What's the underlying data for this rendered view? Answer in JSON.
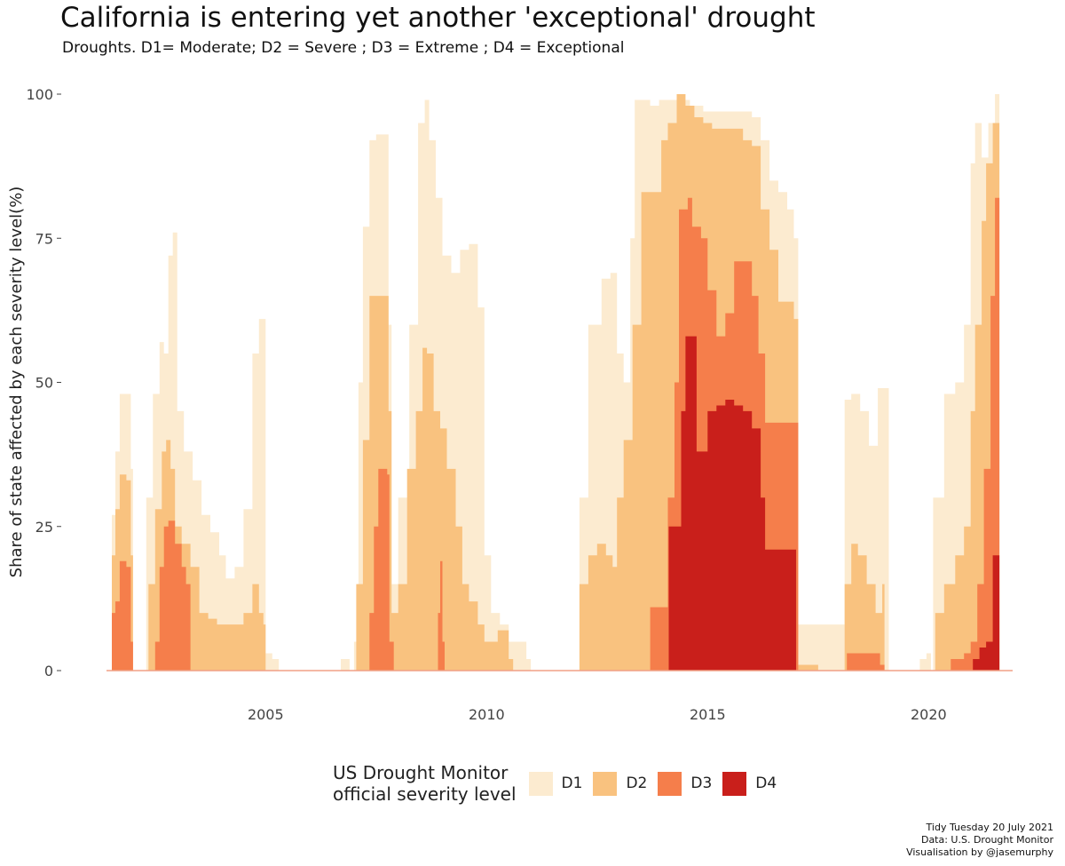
{
  "title": "California is entering yet another 'exceptional' drought",
  "subtitle": "Droughts. D1= Moderate; D2 = Severe ; D3 = Extreme ; D4 = Exceptional",
  "legend": {
    "title_line1": "US Drought Monitor",
    "title_line2": "official severity level",
    "items": [
      {
        "label": "D1",
        "color": "#fcebd0"
      },
      {
        "label": "D2",
        "color": "#f9c27f"
      },
      {
        "label": "D3",
        "color": "#f57e4b"
      },
      {
        "label": "D4",
        "color": "#c91f1b"
      }
    ]
  },
  "caption": {
    "line1": "Tidy Tuesday 20 July 2021",
    "line2": "Data: U.S. Drought Monitor",
    "line3": "Visualisation by @jasemurphy"
  },
  "chart_data": {
    "type": "area",
    "title": "California is entering yet another 'exceptional' drought",
    "subtitle": "Droughts. D1= Moderate; D2 = Severe ; D3 = Extreme ; D4 = Exceptional",
    "xlabel": "",
    "ylabel": "Share of state affected by each severity level(%)",
    "xlim": [
      2001.4,
      2021.9
    ],
    "ylim": [
      0,
      100
    ],
    "xticks": [
      2005,
      2010,
      2015,
      2020
    ],
    "yticks": [
      0,
      25,
      50,
      75,
      100
    ],
    "grid": false,
    "legend_position": "bottom",
    "series": [
      {
        "name": "D1",
        "color": "#fcebd0",
        "points": [
          [
            2001.5,
            0
          ],
          [
            2001.52,
            27
          ],
          [
            2001.6,
            38
          ],
          [
            2001.7,
            48
          ],
          [
            2001.85,
            48
          ],
          [
            2001.95,
            35
          ],
          [
            2002.0,
            0
          ],
          [
            2002.2,
            0
          ],
          [
            2002.3,
            30
          ],
          [
            2002.45,
            48
          ],
          [
            2002.6,
            57
          ],
          [
            2002.7,
            55
          ],
          [
            2002.8,
            72
          ],
          [
            2002.9,
            76
          ],
          [
            2003.0,
            45
          ],
          [
            2003.15,
            38
          ],
          [
            2003.35,
            33
          ],
          [
            2003.55,
            27
          ],
          [
            2003.75,
            24
          ],
          [
            2003.95,
            20
          ],
          [
            2004.1,
            16
          ],
          [
            2004.3,
            18
          ],
          [
            2004.5,
            28
          ],
          [
            2004.7,
            55
          ],
          [
            2004.85,
            61
          ],
          [
            2004.95,
            61
          ],
          [
            2005.0,
            3
          ],
          [
            2005.15,
            2
          ],
          [
            2005.3,
            0
          ],
          [
            2006.6,
            0
          ],
          [
            2006.7,
            2
          ],
          [
            2006.9,
            0
          ],
          [
            2007.0,
            5
          ],
          [
            2007.1,
            50
          ],
          [
            2007.2,
            77
          ],
          [
            2007.35,
            92
          ],
          [
            2007.5,
            93
          ],
          [
            2007.7,
            93
          ],
          [
            2007.78,
            60
          ],
          [
            2007.85,
            15
          ],
          [
            2008.0,
            30
          ],
          [
            2008.25,
            60
          ],
          [
            2008.45,
            95
          ],
          [
            2008.6,
            99
          ],
          [
            2008.7,
            92
          ],
          [
            2008.85,
            82
          ],
          [
            2009.0,
            72
          ],
          [
            2009.2,
            69
          ],
          [
            2009.4,
            73
          ],
          [
            2009.6,
            74
          ],
          [
            2009.8,
            63
          ],
          [
            2009.95,
            20
          ],
          [
            2010.1,
            10
          ],
          [
            2010.3,
            8
          ],
          [
            2010.5,
            5
          ],
          [
            2010.7,
            5
          ],
          [
            2010.9,
            2
          ],
          [
            2011.0,
            0
          ],
          [
            2012.0,
            0
          ],
          [
            2012.1,
            30
          ],
          [
            2012.3,
            60
          ],
          [
            2012.6,
            68
          ],
          [
            2012.8,
            69
          ],
          [
            2012.95,
            55
          ],
          [
            2013.1,
            50
          ],
          [
            2013.25,
            75
          ],
          [
            2013.35,
            99
          ],
          [
            2013.5,
            99
          ],
          [
            2013.7,
            98
          ],
          [
            2013.9,
            99
          ],
          [
            2014.1,
            99
          ],
          [
            2014.3,
            99
          ],
          [
            2014.6,
            98
          ],
          [
            2014.9,
            97
          ],
          [
            2015.2,
            97
          ],
          [
            2015.5,
            97
          ],
          [
            2015.8,
            97
          ],
          [
            2016.0,
            96
          ],
          [
            2016.2,
            92
          ],
          [
            2016.4,
            85
          ],
          [
            2016.6,
            83
          ],
          [
            2016.8,
            80
          ],
          [
            2016.95,
            75
          ],
          [
            2017.05,
            8
          ],
          [
            2017.3,
            8
          ],
          [
            2017.6,
            8
          ],
          [
            2017.85,
            8
          ],
          [
            2017.95,
            8
          ],
          [
            2018.1,
            47
          ],
          [
            2018.25,
            48
          ],
          [
            2018.45,
            45
          ],
          [
            2018.65,
            39
          ],
          [
            2018.85,
            49
          ],
          [
            2019.0,
            49
          ],
          [
            2019.1,
            0
          ],
          [
            2019.7,
            0
          ],
          [
            2019.8,
            2
          ],
          [
            2019.95,
            3
          ],
          [
            2020.05,
            0
          ],
          [
            2020.1,
            30
          ],
          [
            2020.35,
            48
          ],
          [
            2020.6,
            50
          ],
          [
            2020.8,
            60
          ],
          [
            2020.95,
            88
          ],
          [
            2021.05,
            95
          ],
          [
            2021.2,
            89
          ],
          [
            2021.35,
            95
          ],
          [
            2021.5,
            100
          ],
          [
            2021.6,
            100
          ]
        ]
      },
      {
        "name": "D2",
        "color": "#f9c27f",
        "points": [
          [
            2001.5,
            0
          ],
          [
            2001.52,
            20
          ],
          [
            2001.6,
            28
          ],
          [
            2001.7,
            34
          ],
          [
            2001.85,
            33
          ],
          [
            2001.95,
            20
          ],
          [
            2002.0,
            0
          ],
          [
            2002.3,
            0
          ],
          [
            2002.35,
            15
          ],
          [
            2002.5,
            28
          ],
          [
            2002.65,
            38
          ],
          [
            2002.75,
            40
          ],
          [
            2002.85,
            35
          ],
          [
            2002.95,
            25
          ],
          [
            2003.1,
            22
          ],
          [
            2003.3,
            18
          ],
          [
            2003.5,
            10
          ],
          [
            2003.7,
            9
          ],
          [
            2003.9,
            8
          ],
          [
            2004.1,
            8
          ],
          [
            2004.3,
            8
          ],
          [
            2004.5,
            10
          ],
          [
            2004.7,
            15
          ],
          [
            2004.85,
            10
          ],
          [
            2004.95,
            8
          ],
          [
            2005.0,
            0
          ],
          [
            2007.0,
            0
          ],
          [
            2007.05,
            15
          ],
          [
            2007.2,
            40
          ],
          [
            2007.35,
            65
          ],
          [
            2007.5,
            65
          ],
          [
            2007.65,
            65
          ],
          [
            2007.78,
            45
          ],
          [
            2007.85,
            10
          ],
          [
            2008.0,
            15
          ],
          [
            2008.2,
            35
          ],
          [
            2008.4,
            45
          ],
          [
            2008.55,
            56
          ],
          [
            2008.65,
            55
          ],
          [
            2008.8,
            45
          ],
          [
            2008.95,
            42
          ],
          [
            2009.1,
            35
          ],
          [
            2009.3,
            25
          ],
          [
            2009.45,
            15
          ],
          [
            2009.6,
            12
          ],
          [
            2009.8,
            8
          ],
          [
            2009.95,
            5
          ],
          [
            2010.1,
            5
          ],
          [
            2010.25,
            7
          ],
          [
            2010.4,
            7
          ],
          [
            2010.5,
            2
          ],
          [
            2010.6,
            0
          ],
          [
            2012.0,
            0
          ],
          [
            2012.1,
            15
          ],
          [
            2012.3,
            20
          ],
          [
            2012.5,
            22
          ],
          [
            2012.7,
            20
          ],
          [
            2012.85,
            18
          ],
          [
            2012.95,
            30
          ],
          [
            2013.1,
            40
          ],
          [
            2013.3,
            60
          ],
          [
            2013.5,
            83
          ],
          [
            2013.7,
            83
          ],
          [
            2013.85,
            83
          ],
          [
            2013.95,
            92
          ],
          [
            2014.1,
            95
          ],
          [
            2014.3,
            100
          ],
          [
            2014.5,
            98
          ],
          [
            2014.7,
            96
          ],
          [
            2014.9,
            95
          ],
          [
            2015.1,
            94
          ],
          [
            2015.4,
            94
          ],
          [
            2015.6,
            94
          ],
          [
            2015.8,
            92
          ],
          [
            2016.0,
            91
          ],
          [
            2016.2,
            80
          ],
          [
            2016.4,
            73
          ],
          [
            2016.6,
            64
          ],
          [
            2016.8,
            64
          ],
          [
            2016.95,
            61
          ],
          [
            2017.05,
            1
          ],
          [
            2017.3,
            1
          ],
          [
            2017.5,
            0
          ],
          [
            2018.0,
            0
          ],
          [
            2018.1,
            15
          ],
          [
            2018.25,
            22
          ],
          [
            2018.4,
            20
          ],
          [
            2018.6,
            15
          ],
          [
            2018.8,
            10
          ],
          [
            2018.95,
            15
          ],
          [
            2019.0,
            0
          ],
          [
            2020.05,
            0
          ],
          [
            2020.15,
            10
          ],
          [
            2020.35,
            15
          ],
          [
            2020.6,
            20
          ],
          [
            2020.8,
            25
          ],
          [
            2020.95,
            45
          ],
          [
            2021.05,
            60
          ],
          [
            2021.2,
            78
          ],
          [
            2021.3,
            88
          ],
          [
            2021.45,
            95
          ],
          [
            2021.6,
            95
          ]
        ]
      },
      {
        "name": "D3",
        "color": "#f57e4b",
        "points": [
          [
            2001.5,
            0
          ],
          [
            2001.52,
            10
          ],
          [
            2001.6,
            12
          ],
          [
            2001.7,
            19
          ],
          [
            2001.85,
            18
          ],
          [
            2001.95,
            5
          ],
          [
            2002.0,
            0
          ],
          [
            2002.45,
            0
          ],
          [
            2002.5,
            5
          ],
          [
            2002.6,
            18
          ],
          [
            2002.7,
            25
          ],
          [
            2002.8,
            26
          ],
          [
            2002.95,
            22
          ],
          [
            2003.1,
            18
          ],
          [
            2003.2,
            15
          ],
          [
            2003.3,
            0
          ],
          [
            2007.3,
            0
          ],
          [
            2007.35,
            10
          ],
          [
            2007.45,
            25
          ],
          [
            2007.55,
            35
          ],
          [
            2007.65,
            35
          ],
          [
            2007.75,
            34
          ],
          [
            2007.8,
            5
          ],
          [
            2007.9,
            0
          ],
          [
            2008.85,
            0
          ],
          [
            2008.9,
            10
          ],
          [
            2008.95,
            19
          ],
          [
            2009.0,
            5
          ],
          [
            2009.05,
            0
          ],
          [
            2013.65,
            0
          ],
          [
            2013.7,
            11
          ],
          [
            2013.95,
            11
          ],
          [
            2014.1,
            30
          ],
          [
            2014.25,
            50
          ],
          [
            2014.35,
            80
          ],
          [
            2014.55,
            82
          ],
          [
            2014.65,
            77
          ],
          [
            2014.85,
            75
          ],
          [
            2015.0,
            66
          ],
          [
            2015.2,
            58
          ],
          [
            2015.4,
            62
          ],
          [
            2015.6,
            71
          ],
          [
            2015.8,
            71
          ],
          [
            2016.0,
            65
          ],
          [
            2016.15,
            55
          ],
          [
            2016.3,
            43
          ],
          [
            2016.5,
            43
          ],
          [
            2016.7,
            43
          ],
          [
            2016.95,
            43
          ],
          [
            2017.05,
            0
          ],
          [
            2018.1,
            0
          ],
          [
            2018.15,
            3
          ],
          [
            2018.5,
            3
          ],
          [
            2018.8,
            3
          ],
          [
            2018.9,
            1
          ],
          [
            2019.0,
            0
          ],
          [
            2020.4,
            0
          ],
          [
            2020.5,
            2
          ],
          [
            2020.8,
            3
          ],
          [
            2020.95,
            5
          ],
          [
            2021.1,
            15
          ],
          [
            2021.25,
            35
          ],
          [
            2021.4,
            65
          ],
          [
            2021.5,
            82
          ],
          [
            2021.6,
            86
          ]
        ]
      },
      {
        "name": "D4",
        "color": "#c91f1b",
        "points": [
          [
            2014.1,
            0
          ],
          [
            2014.12,
            25
          ],
          [
            2014.3,
            25
          ],
          [
            2014.4,
            45
          ],
          [
            2014.5,
            58
          ],
          [
            2014.7,
            58
          ],
          [
            2014.75,
            38
          ],
          [
            2015.0,
            45
          ],
          [
            2015.2,
            46
          ],
          [
            2015.4,
            47
          ],
          [
            2015.6,
            46
          ],
          [
            2015.8,
            45
          ],
          [
            2016.0,
            42
          ],
          [
            2016.2,
            30
          ],
          [
            2016.3,
            21
          ],
          [
            2016.5,
            21
          ],
          [
            2016.7,
            21
          ],
          [
            2016.95,
            21
          ],
          [
            2017.0,
            0
          ],
          [
            2020.95,
            0
          ],
          [
            2021.0,
            2
          ],
          [
            2021.15,
            4
          ],
          [
            2021.3,
            5
          ],
          [
            2021.45,
            20
          ],
          [
            2021.6,
            33
          ]
        ]
      }
    ]
  }
}
